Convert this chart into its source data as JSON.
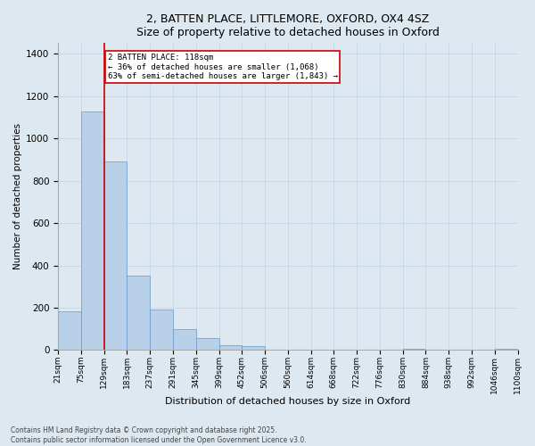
{
  "title_line1": "2, BATTEN PLACE, LITTLEMORE, OXFORD, OX4 4SZ",
  "title_line2": "Size of property relative to detached houses in Oxford",
  "xlabel": "Distribution of detached houses by size in Oxford",
  "ylabel": "Number of detached properties",
  "bins": [
    "21sqm",
    "75sqm",
    "129sqm",
    "183sqm",
    "237sqm",
    "291sqm",
    "345sqm",
    "399sqm",
    "452sqm",
    "506sqm",
    "560sqm",
    "614sqm",
    "668sqm",
    "722sqm",
    "776sqm",
    "830sqm",
    "884sqm",
    "938sqm",
    "992sqm",
    "1046sqm",
    "1100sqm"
  ],
  "values": [
    185,
    1125,
    890,
    350,
    190,
    100,
    55,
    25,
    17,
    0,
    0,
    0,
    0,
    0,
    0,
    5,
    0,
    0,
    0,
    5
  ],
  "bar_color": "#b8d0e8",
  "bar_edge_color": "#6699cc",
  "grid_color": "#c8d8e8",
  "background_color": "#dde8f0",
  "vline_color": "#cc0000",
  "annotation_text": "2 BATTEN PLACE: 118sqm\n← 36% of detached houses are smaller (1,068)\n63% of semi-detached houses are larger (1,843) →",
  "annotation_box_color": "#ffffff",
  "annotation_box_edge": "#cc0000",
  "ylim": [
    0,
    1450
  ],
  "yticks": [
    0,
    200,
    400,
    600,
    800,
    1000,
    1200,
    1400
  ],
  "footer_line1": "Contains HM Land Registry data © Crown copyright and database right 2025.",
  "footer_line2": "Contains public sector information licensed under the Open Government Licence v3.0."
}
